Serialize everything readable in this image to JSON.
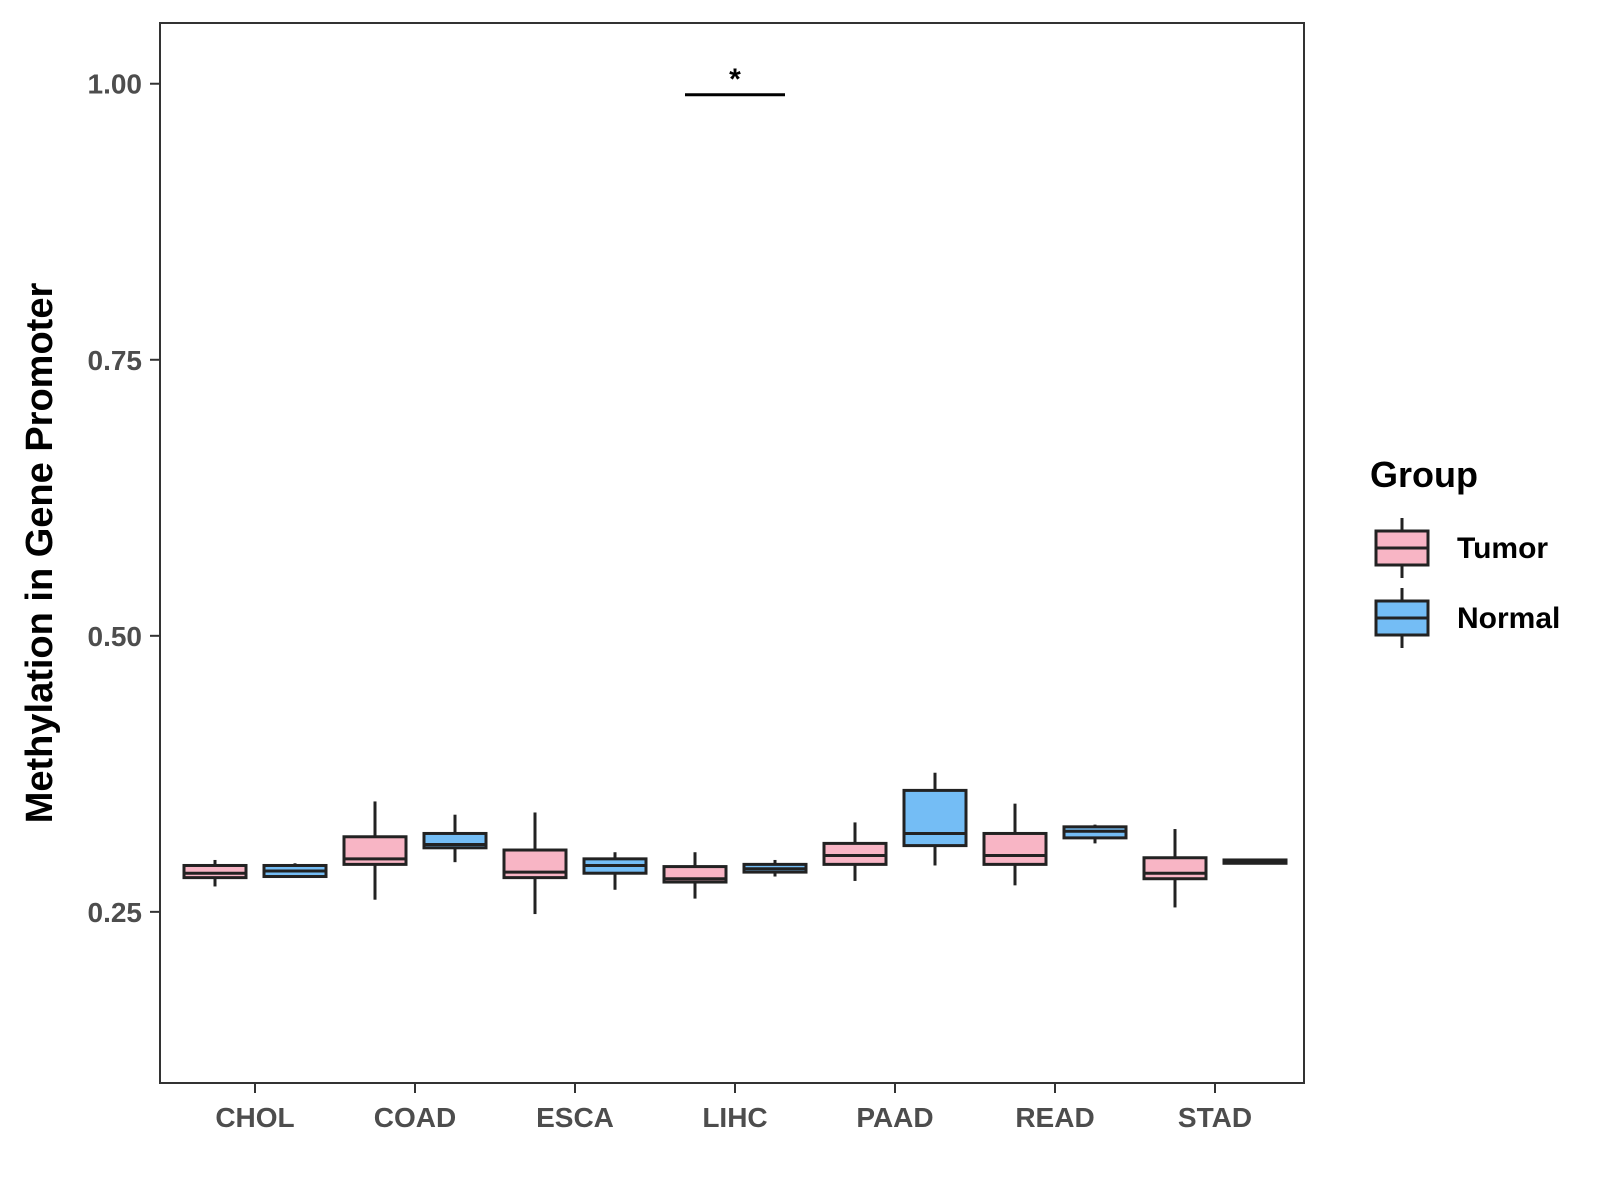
{
  "chart_data": {
    "type": "boxplot",
    "title": "",
    "xlabel": "",
    "ylabel": "Methylation in Gene Promoter",
    "ylim": [
      0.095,
      1.055
    ],
    "yticks": [
      0.25,
      0.5,
      0.75,
      1.0
    ],
    "ytick_labels": [
      "0.25",
      "0.50",
      "0.75",
      "1.00"
    ],
    "categories": [
      "CHOL",
      "COAD",
      "ESCA",
      "LIHC",
      "PAAD",
      "READ",
      "STAD"
    ],
    "legend": {
      "title": "Group",
      "position": "right",
      "entries": [
        {
          "name": "Tumor",
          "color": "#F8B5C5"
        },
        {
          "name": "Normal",
          "color": "#74BDF5"
        }
      ]
    },
    "series": [
      {
        "name": "Tumor",
        "color": "#F8B5C5",
        "boxes": [
          {
            "category": "CHOL",
            "whisker_low": 0.273,
            "q1": 0.281,
            "median": 0.285,
            "q3": 0.292,
            "whisker_high": 0.297
          },
          {
            "category": "COAD",
            "whisker_low": 0.261,
            "q1": 0.293,
            "median": 0.298,
            "q3": 0.318,
            "whisker_high": 0.35
          },
          {
            "category": "ESCA",
            "whisker_low": 0.248,
            "q1": 0.281,
            "median": 0.286,
            "q3": 0.306,
            "whisker_high": 0.34
          },
          {
            "category": "LIHC",
            "whisker_low": 0.262,
            "q1": 0.277,
            "median": 0.28,
            "q3": 0.291,
            "whisker_high": 0.304
          },
          {
            "category": "PAAD",
            "whisker_low": 0.278,
            "q1": 0.293,
            "median": 0.301,
            "q3": 0.312,
            "whisker_high": 0.331
          },
          {
            "category": "READ",
            "whisker_low": 0.274,
            "q1": 0.293,
            "median": 0.301,
            "q3": 0.321,
            "whisker_high": 0.348
          },
          {
            "category": "STAD",
            "whisker_low": 0.254,
            "q1": 0.28,
            "median": 0.285,
            "q3": 0.299,
            "whisker_high": 0.325
          }
        ]
      },
      {
        "name": "Normal",
        "color": "#74BDF5",
        "boxes": [
          {
            "category": "CHOL",
            "whisker_low": 0.281,
            "q1": 0.282,
            "median": 0.287,
            "q3": 0.292,
            "whisker_high": 0.294
          },
          {
            "category": "COAD",
            "whisker_low": 0.295,
            "q1": 0.308,
            "median": 0.311,
            "q3": 0.321,
            "whisker_high": 0.338
          },
          {
            "category": "ESCA",
            "whisker_low": 0.27,
            "q1": 0.285,
            "median": 0.292,
            "q3": 0.298,
            "whisker_high": 0.304
          },
          {
            "category": "LIHC",
            "whisker_low": 0.282,
            "q1": 0.286,
            "median": 0.289,
            "q3": 0.293,
            "whisker_high": 0.297
          },
          {
            "category": "PAAD",
            "whisker_low": 0.292,
            "q1": 0.31,
            "median": 0.321,
            "q3": 0.36,
            "whisker_high": 0.376
          },
          {
            "category": "READ",
            "whisker_low": 0.312,
            "q1": 0.317,
            "median": 0.323,
            "q3": 0.327,
            "whisker_high": 0.329
          },
          {
            "category": "STAD",
            "whisker_low": 0.294,
            "q1": 0.294,
            "median": 0.295,
            "q3": 0.297,
            "whisker_high": 0.297
          }
        ]
      }
    ],
    "annotations": [
      {
        "category": "LIHC",
        "text": "*",
        "y": 0.99,
        "type": "significance-bracket"
      }
    ]
  }
}
